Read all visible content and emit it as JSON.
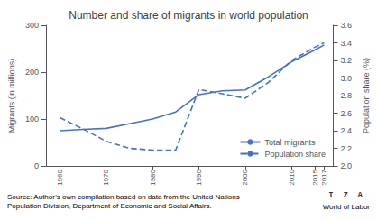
{
  "chart_data": {
    "type": "line",
    "title": "Number and share of migrants in world population",
    "x": [
      1960,
      1965,
      1970,
      1975,
      1980,
      1985,
      1990,
      1995,
      2000,
      2005,
      2010,
      2015,
      2017
    ],
    "series": [
      {
        "name": "Total migrants",
        "color": "#4472C4",
        "line_style": "solid",
        "values": [
          75,
          78,
          80,
          90,
          100,
          115,
          152,
          160,
          162,
          190,
          222,
          247,
          258
        ]
      },
      {
        "name": "Population share",
        "color": "#4472C4",
        "line_style": "dashed",
        "axis": "y2",
        "values": [
          2.55,
          2.42,
          2.28,
          2.2,
          2.18,
          2.18,
          2.87,
          2.82,
          2.77,
          2.95,
          3.2,
          3.35,
          3.4
        ]
      }
    ],
    "ylabel": "Migrants (in millions)",
    "y2label": "Population share (%)",
    "xlim": [
      1957,
      2019
    ],
    "xticks": [
      1960,
      1970,
      1980,
      1990,
      2000,
      2010,
      2015,
      2017
    ],
    "ylim": [
      0,
      300
    ],
    "yticks": [
      0,
      100,
      200,
      300
    ],
    "y2lim": [
      2.0,
      3.6
    ],
    "y2ticks": [
      {
        "value": 2.0,
        "label": "2.0"
      },
      2.2,
      2.4,
      2.6,
      2.8,
      {
        "value": 3.0,
        "label": "3.0"
      },
      3.2,
      3.4,
      3.6
    ],
    "grid": false,
    "legend": "lower right",
    "annotations": [
      "Source: Author’s own compilation based on data from the United Nations\nPopulation Division, Department of Economic and Social Affairs.",
      "I  Z  A",
      "World of Labor"
    ]
  }
}
